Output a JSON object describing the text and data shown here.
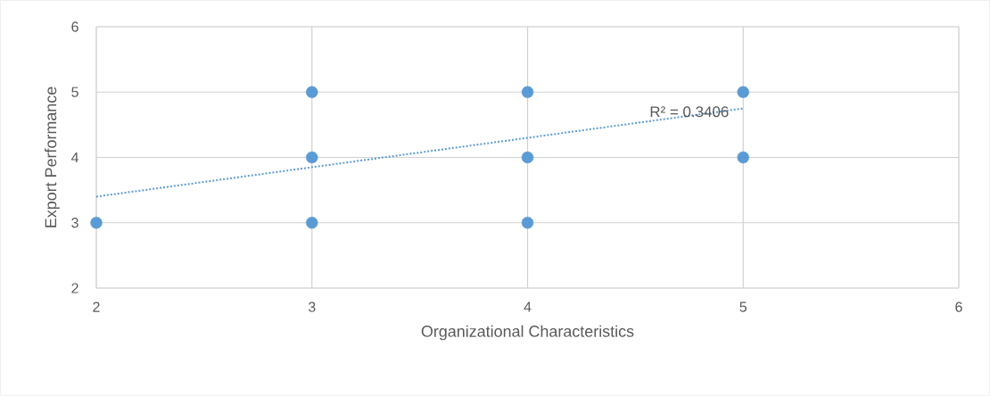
{
  "chart_data": {
    "type": "scatter",
    "xlabel": "Organizational Characteristics",
    "ylabel": "Export Performance",
    "xlim": [
      2,
      6
    ],
    "ylim": [
      2,
      6
    ],
    "xticks": [
      2,
      3,
      4,
      5,
      6
    ],
    "yticks": [
      2,
      3,
      4,
      5,
      6
    ],
    "grid": true,
    "series": [
      {
        "color": "#5b9bd5",
        "marker": "circle",
        "x": [
          2,
          3,
          3,
          3,
          4,
          4,
          4,
          5,
          5
        ],
        "values": [
          3,
          5,
          4,
          3,
          5,
          4,
          3,
          5,
          4
        ]
      },
      {
        "type": "line",
        "color": "#5b9bd5",
        "marker": "none",
        "line_style": "dotted",
        "x": [
          2,
          5
        ],
        "values": [
          3.4,
          4.75
        ]
      }
    ],
    "annotations": [
      {
        "text": "R² = 0.3406",
        "x": 4.75,
        "y": 4.7
      }
    ]
  }
}
